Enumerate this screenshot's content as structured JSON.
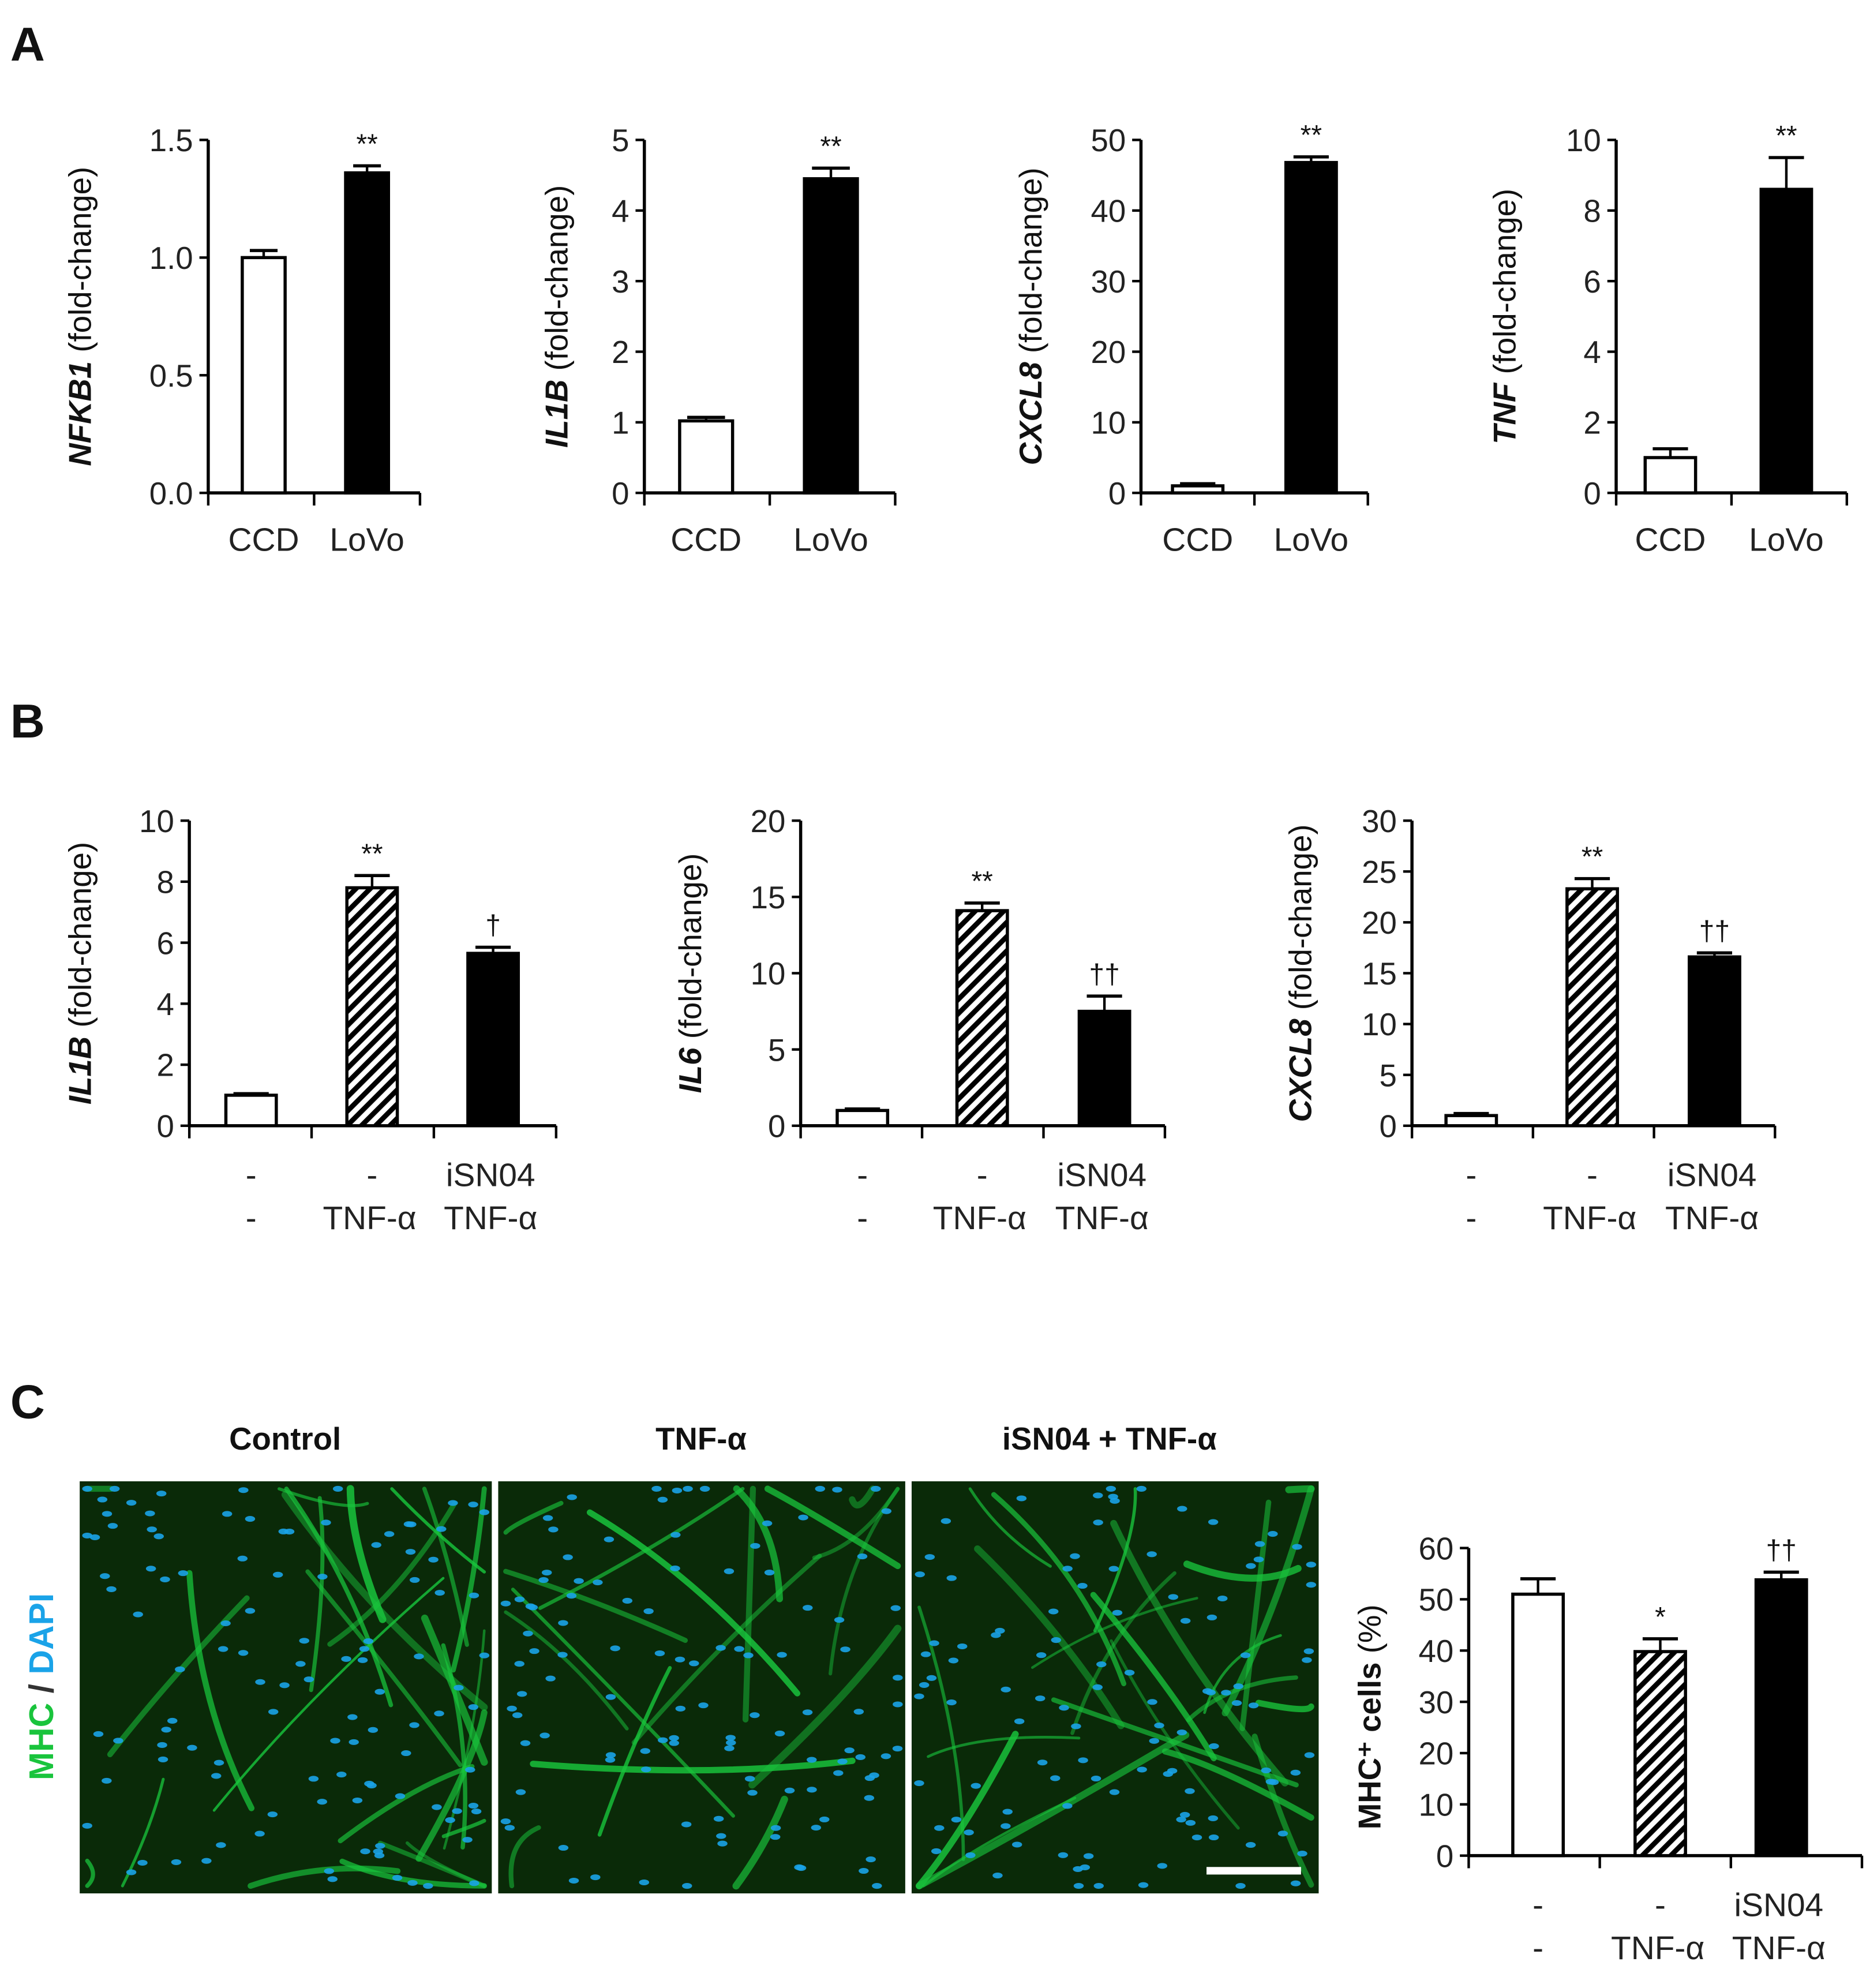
{
  "panel_labels": [
    "A",
    "B",
    "C"
  ],
  "colors": {
    "bar_control": "#ffffff",
    "bar_treated": "#000000",
    "hatch": "#000000",
    "mhc": "#19c43c",
    "dapi": "#1aa3e8",
    "image_bg": "#0a2a08"
  },
  "chart_data": [
    {
      "id": "A1",
      "type": "bar",
      "gene": "NFKB1",
      "ylabel_suffix": " (fold-change)",
      "ylim": [
        0,
        1.5
      ],
      "yticks": [
        "0.0",
        "0.5",
        "1.0",
        "1.5"
      ],
      "ytick_values": [
        0,
        0.5,
        1.0,
        1.5
      ],
      "categories": [
        [
          "CCD"
        ],
        [
          "LoVo"
        ]
      ],
      "values": [
        1.0,
        1.36
      ],
      "errors": [
        0.03,
        0.03
      ],
      "fills": [
        "white",
        "black"
      ],
      "significance": [
        "",
        "**"
      ]
    },
    {
      "id": "A2",
      "type": "bar",
      "gene": "IL1B",
      "ylabel_suffix": " (fold-change)",
      "ylim": [
        0,
        5
      ],
      "yticks": [
        "0",
        "1",
        "2",
        "3",
        "4",
        "5"
      ],
      "ytick_values": [
        0,
        1,
        2,
        3,
        4,
        5
      ],
      "categories": [
        [
          "CCD"
        ],
        [
          "LoVo"
        ]
      ],
      "values": [
        1.02,
        4.45
      ],
      "errors": [
        0.05,
        0.15
      ],
      "fills": [
        "white",
        "black"
      ],
      "significance": [
        "",
        "**"
      ]
    },
    {
      "id": "A3",
      "type": "bar",
      "gene": "CXCL8",
      "ylabel_suffix": " (fold-change)",
      "ylim": [
        0,
        50
      ],
      "yticks": [
        "0",
        "10",
        "20",
        "30",
        "40",
        "50"
      ],
      "ytick_values": [
        0,
        10,
        20,
        30,
        40,
        50
      ],
      "categories": [
        [
          "CCD"
        ],
        [
          "LoVo"
        ]
      ],
      "values": [
        1.0,
        46.8
      ],
      "errors": [
        0.3,
        0.8
      ],
      "fills": [
        "white",
        "black"
      ],
      "significance": [
        "",
        "**"
      ]
    },
    {
      "id": "A4",
      "type": "bar",
      "gene": "TNF",
      "ylabel_suffix": " (fold-change)",
      "ylim": [
        0,
        10
      ],
      "yticks": [
        "0",
        "2",
        "4",
        "6",
        "8",
        "10"
      ],
      "ytick_values": [
        0,
        2,
        4,
        6,
        8,
        10
      ],
      "categories": [
        [
          "CCD"
        ],
        [
          "LoVo"
        ]
      ],
      "values": [
        1.0,
        8.6
      ],
      "errors": [
        0.25,
        0.9
      ],
      "fills": [
        "white",
        "black"
      ],
      "significance": [
        "",
        "**"
      ]
    },
    {
      "id": "B1",
      "type": "bar",
      "gene": "IL1B",
      "ylabel_suffix": " (fold-change)",
      "ylim": [
        0,
        10
      ],
      "yticks": [
        "0",
        "2",
        "4",
        "6",
        "8",
        "10"
      ],
      "ytick_values": [
        0,
        2,
        4,
        6,
        8,
        10
      ],
      "categories": [
        [
          "-",
          "-"
        ],
        [
          "-",
          "TNF-α"
        ],
        [
          "iSN04",
          "TNF-α"
        ]
      ],
      "values": [
        1.0,
        7.8,
        5.65
      ],
      "errors": [
        0.05,
        0.4,
        0.2
      ],
      "fills": [
        "white",
        "hatch",
        "black"
      ],
      "significance": [
        "",
        "**",
        "†"
      ]
    },
    {
      "id": "B2",
      "type": "bar",
      "gene": "IL6",
      "ylabel_suffix": " (fold-change)",
      "ylim": [
        0,
        20
      ],
      "yticks": [
        "0",
        "5",
        "10",
        "15",
        "20"
      ],
      "ytick_values": [
        0,
        5,
        10,
        15,
        20
      ],
      "categories": [
        [
          "-",
          "-"
        ],
        [
          "-",
          "TNF-α"
        ],
        [
          "iSN04",
          "TNF-α"
        ]
      ],
      "values": [
        1.0,
        14.1,
        7.5
      ],
      "errors": [
        0.1,
        0.5,
        1.0
      ],
      "fills": [
        "white",
        "hatch",
        "black"
      ],
      "significance": [
        "",
        "**",
        "††"
      ]
    },
    {
      "id": "B3",
      "type": "bar",
      "gene": "CXCL8",
      "ylabel_suffix": " (fold-change)",
      "ylim": [
        0,
        30
      ],
      "yticks": [
        "0",
        "5",
        "10",
        "15",
        "20",
        "25",
        "30"
      ],
      "ytick_values": [
        0,
        5,
        10,
        15,
        20,
        25,
        30
      ],
      "categories": [
        [
          "-",
          "-"
        ],
        [
          "-",
          "TNF-α"
        ],
        [
          "iSN04",
          "TNF-α"
        ]
      ],
      "values": [
        1.0,
        23.3,
        16.6
      ],
      "errors": [
        0.2,
        1.0,
        0.4
      ],
      "fills": [
        "white",
        "hatch",
        "black"
      ],
      "significance": [
        "",
        "**",
        "††"
      ]
    },
    {
      "id": "C1",
      "type": "bar",
      "gene": "MHC⁺ cells",
      "ylabel_suffix": " (%)",
      "ylim": [
        0,
        60
      ],
      "yticks": [
        "0",
        "10",
        "20",
        "30",
        "40",
        "50",
        "60"
      ],
      "ytick_values": [
        0,
        10,
        20,
        30,
        40,
        50,
        60
      ],
      "categories": [
        [
          "-",
          "-"
        ],
        [
          "-",
          "TNF-α"
        ],
        [
          "iSN04",
          "TNF-α"
        ]
      ],
      "values": [
        51,
        39.8,
        53.8
      ],
      "errors": [
        3,
        2.5,
        1.5
      ],
      "fills": [
        "white",
        "hatch",
        "black"
      ],
      "significance": [
        "",
        "*",
        "††"
      ]
    }
  ],
  "images": {
    "titles": [
      "Control",
      "TNF-α",
      "iSN04 + TNF-α"
    ],
    "stain_label": {
      "mhc": "MHC",
      "sep": " / ",
      "dapi": "DAPI"
    }
  }
}
